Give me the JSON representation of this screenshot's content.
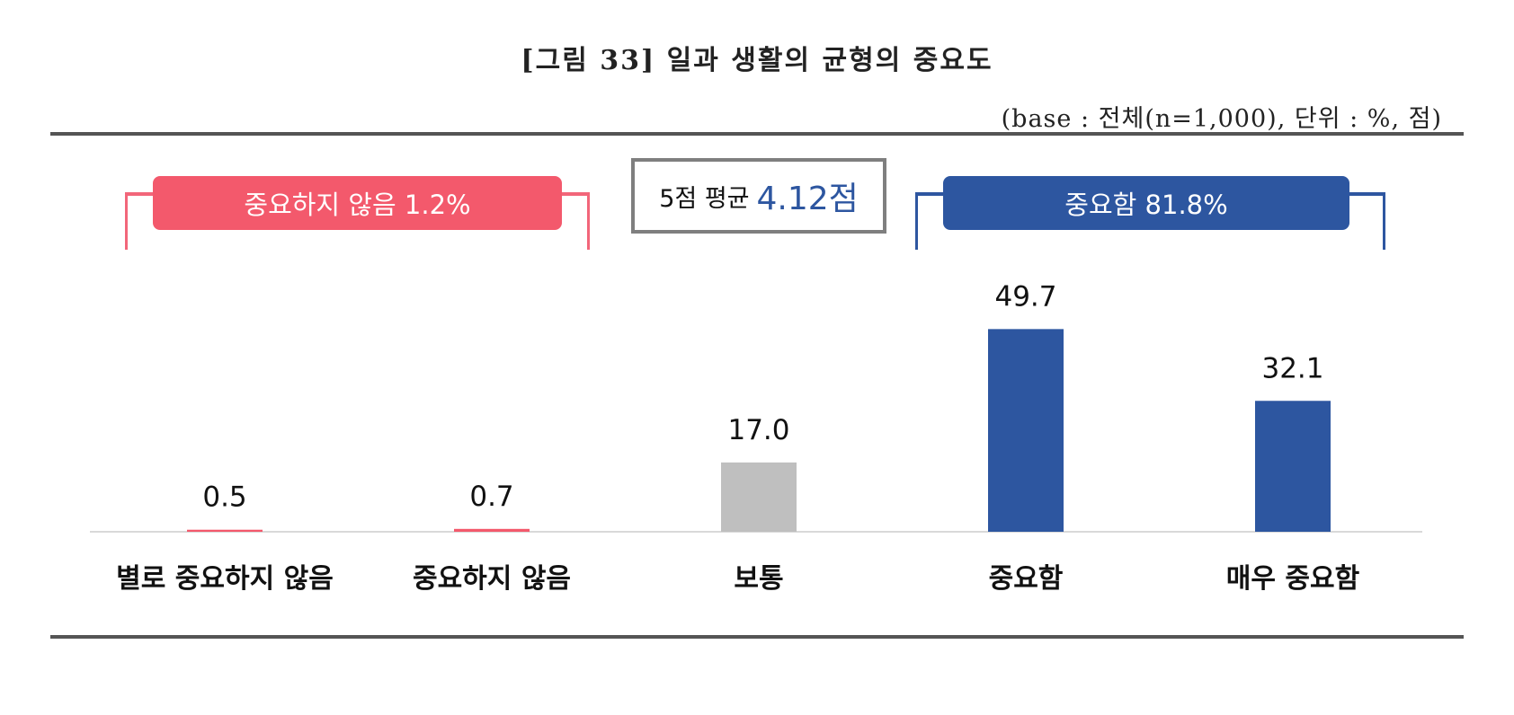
{
  "figure": {
    "title": "[그림 33] 일과 생활의 균형의 중요도",
    "base_note": "(base : 전체(n=1,000), 단위 : %, 점)"
  },
  "summary": {
    "not_important_label": "중요하지 않음 1.2%",
    "important_label": "중요함 81.8%",
    "average_label": "5점 평균",
    "average_value": "4.12점"
  },
  "colors": {
    "negative": "#f3596c",
    "neutral": "#bfbfbf",
    "positive": "#2d56a0",
    "axis": "#d9d9d9"
  },
  "chart_data": {
    "type": "bar",
    "title": "[그림 33] 일과 생활의 균형의 중요도",
    "categories": [
      "별로 중요하지 않음",
      "중요하지 않음",
      "보통",
      "중요함",
      "매우 중요함"
    ],
    "values": [
      0.5,
      0.7,
      17.0,
      49.7,
      32.1
    ],
    "value_labels": [
      "0.5",
      "0.7",
      "17.0",
      "49.7",
      "32.1"
    ],
    "bar_colors": [
      "#f3596c",
      "#f3596c",
      "#bfbfbf",
      "#2d56a0",
      "#2d56a0"
    ],
    "ylim": [
      0,
      55
    ],
    "grid": false,
    "legend": "none"
  }
}
